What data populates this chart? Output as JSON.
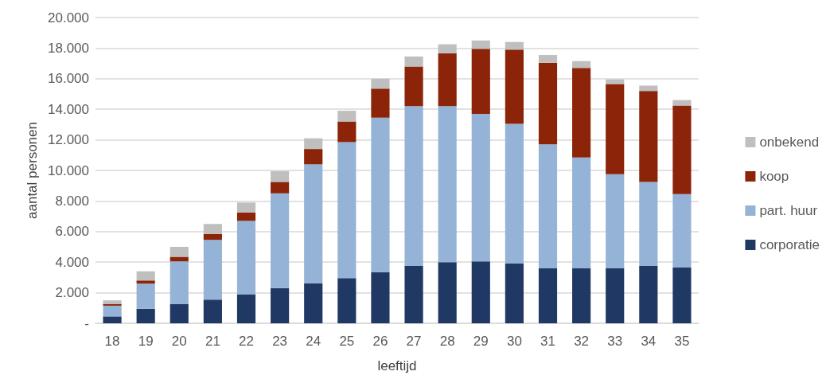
{
  "chart_data": {
    "type": "bar",
    "stacked": true,
    "xlabel": "leeftijd",
    "ylabel": "aantal personen",
    "categories": [
      "18",
      "19",
      "20",
      "21",
      "22",
      "23",
      "24",
      "25",
      "26",
      "27",
      "28",
      "29",
      "30",
      "31",
      "32",
      "33",
      "34",
      "35"
    ],
    "series": [
      {
        "name": "corporatie",
        "color": "#203864",
        "values": [
          450,
          950,
          1250,
          1550,
          1900,
          2300,
          2600,
          2950,
          3350,
          3750,
          4000,
          4050,
          3900,
          3600,
          3600,
          3600,
          3750,
          3650
        ]
      },
      {
        "name": "part. huur",
        "color": "#95b3d7",
        "values": [
          700,
          1650,
          2800,
          3900,
          4800,
          6200,
          7800,
          8900,
          10100,
          10450,
          10200,
          9650,
          9150,
          8100,
          7250,
          6150,
          5500,
          4800
        ]
      },
      {
        "name": "koop",
        "color": "#8b2409",
        "values": [
          100,
          200,
          300,
          400,
          550,
          750,
          1000,
          1350,
          1900,
          2600,
          3450,
          4250,
          4850,
          5350,
          5850,
          5900,
          5950,
          5800
        ]
      },
      {
        "name": "onbekend",
        "color": "#bfbfbf",
        "values": [
          250,
          600,
          650,
          650,
          650,
          700,
          700,
          700,
          650,
          650,
          600,
          550,
          500,
          500,
          450,
          300,
          350,
          350
        ]
      }
    ],
    "ylim": [
      0,
      20000
    ],
    "yticks": [
      {
        "value": 0,
        "label": "-"
      },
      {
        "value": 2000,
        "label": "2.000"
      },
      {
        "value": 4000,
        "label": "4.000"
      },
      {
        "value": 6000,
        "label": "6.000"
      },
      {
        "value": 8000,
        "label": "8.000"
      },
      {
        "value": 10000,
        "label": "10.000"
      },
      {
        "value": 12000,
        "label": "12.000"
      },
      {
        "value": 14000,
        "label": "14.000"
      },
      {
        "value": 16000,
        "label": "16.000"
      },
      {
        "value": 18000,
        "label": "18.000"
      },
      {
        "value": 20000,
        "label": "20.000"
      }
    ],
    "grid": "y",
    "legend": "right"
  }
}
